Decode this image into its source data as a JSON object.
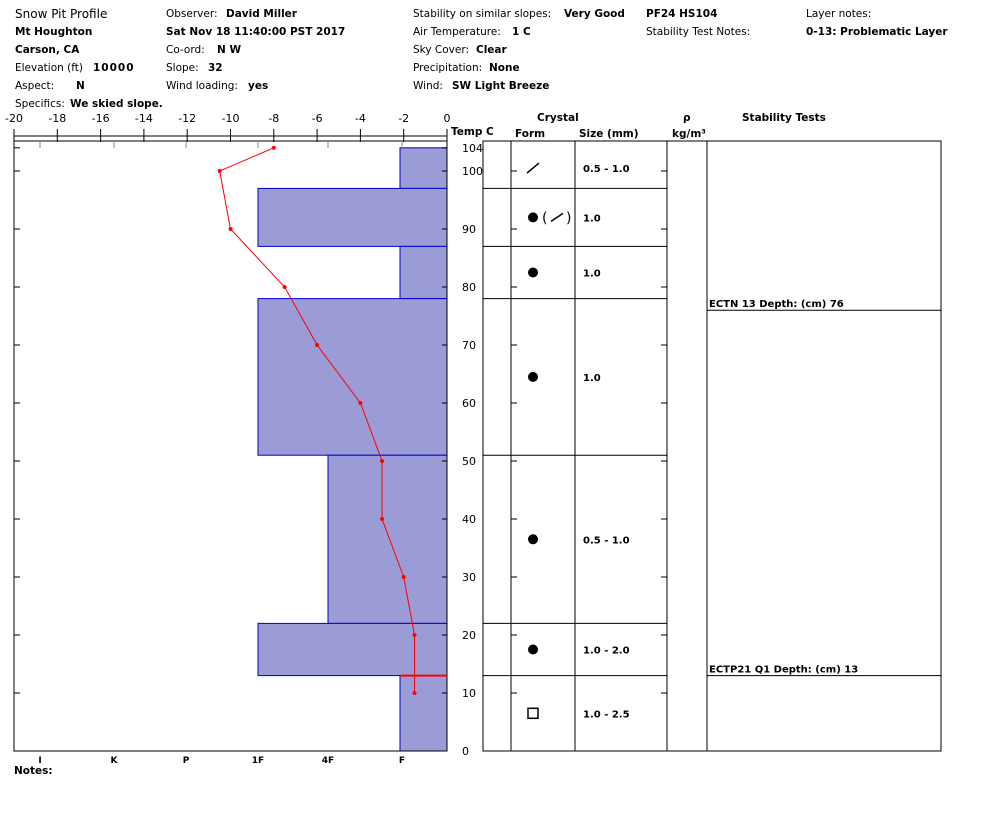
{
  "header": {
    "title": "Snow Pit Profile",
    "location": "Mt Houghton",
    "region": "Carson, CA",
    "elevation_label": "Elevation (ft)",
    "elevation": "10000",
    "aspect_label": "Aspect:",
    "aspect": "N",
    "specifics_label": "Specifics:",
    "specifics": "We skied slope.",
    "observer_label": "Observer:",
    "observer": "David Miller",
    "datetime": "Sat Nov 18 11:40:00 PST 2017",
    "coord_label": "Co-ord:",
    "coord": "N  W",
    "slope_label": "Slope:",
    "slope": "32",
    "wind_loading_label": "Wind loading:",
    "wind_loading": "yes",
    "stability_label": "Stability on similar slopes:",
    "stability": "Very Good",
    "air_temp_label": "Air Temperature:",
    "air_temp": "1 C",
    "sky_label": "Sky Cover:",
    "sky": "Clear",
    "precip_label": "Precipitation:",
    "precip": "None",
    "wind_label": "Wind:",
    "wind": "SW Light Breeze",
    "pf": "PF24 HS104",
    "stab_notes_label": "Stability Test Notes:",
    "layer_notes_label": "Layer notes:",
    "layer_notes": "0-13: Problematic Layer"
  },
  "table_headers": {
    "crystal": "Crystal",
    "form": "Form",
    "size": "Size (mm)",
    "rho": "ρ",
    "density_unit": "kg/m³",
    "stability_tests": "Stability Tests"
  },
  "notes_label": "Notes:",
  "colors": {
    "hardness_fill": "#9b9bd6",
    "hardness_stroke": "#0000cc",
    "temp_line": "#ff0000"
  },
  "chart_data": {
    "type": "line",
    "temp_axis": {
      "label": "Temp C",
      "range": [
        -20,
        0
      ],
      "ticks": [
        "-20",
        "-18",
        "-16",
        "-14",
        "-12",
        "-10",
        "-8",
        "-6",
        "-4",
        "-2",
        "0"
      ]
    },
    "height_axis": {
      "range": [
        0,
        104
      ],
      "ticks": [
        "0",
        "10",
        "20",
        "30",
        "40",
        "50",
        "60",
        "70",
        "80",
        "90",
        "100",
        "104"
      ]
    },
    "hardness_axis": {
      "ticks": [
        "I",
        "K",
        "P",
        "1F",
        "4F",
        "F"
      ]
    },
    "temperature_profile": [
      {
        "h": 104,
        "t": -8.0
      },
      {
        "h": 100,
        "t": -10.5
      },
      {
        "h": 90,
        "t": -10.0
      },
      {
        "h": 80,
        "t": -7.5
      },
      {
        "h": 70,
        "t": -6.0
      },
      {
        "h": 60,
        "t": -4.0
      },
      {
        "h": 50,
        "t": -3.0
      },
      {
        "h": 40,
        "t": -3.0
      },
      {
        "h": 30,
        "t": -2.0
      },
      {
        "h": 20,
        "t": -1.5
      },
      {
        "h": 10,
        "t": -1.5
      }
    ],
    "layers": [
      {
        "top": 104,
        "bottom": 97,
        "hardness": "F",
        "form": "decomposing",
        "size": "0.5 - 1.0"
      },
      {
        "top": 97,
        "bottom": 87,
        "hardness": "1F",
        "form": "rounded (decomposing)",
        "size": "1.0"
      },
      {
        "top": 87,
        "bottom": 78,
        "hardness": "F",
        "form": "rounded",
        "size": "1.0"
      },
      {
        "top": 78,
        "bottom": 51,
        "hardness": "1F",
        "form": "rounded",
        "size": "1.0"
      },
      {
        "top": 51,
        "bottom": 22,
        "hardness": "4F",
        "form": "rounded",
        "size": "0.5 - 1.0"
      },
      {
        "top": 22,
        "bottom": 13,
        "hardness": "1F",
        "form": "rounded",
        "size": "1.0 - 2.0"
      },
      {
        "top": 13,
        "bottom": 0,
        "hardness": "F",
        "form": "faceted",
        "size": "1.0 - 2.5"
      }
    ],
    "stability_tests": [
      {
        "text": "ECTN 13   Depth: (cm) 76",
        "depth": 76
      },
      {
        "text": "ECTP21 Q1 Depth: (cm) 13",
        "depth": 13
      }
    ]
  }
}
